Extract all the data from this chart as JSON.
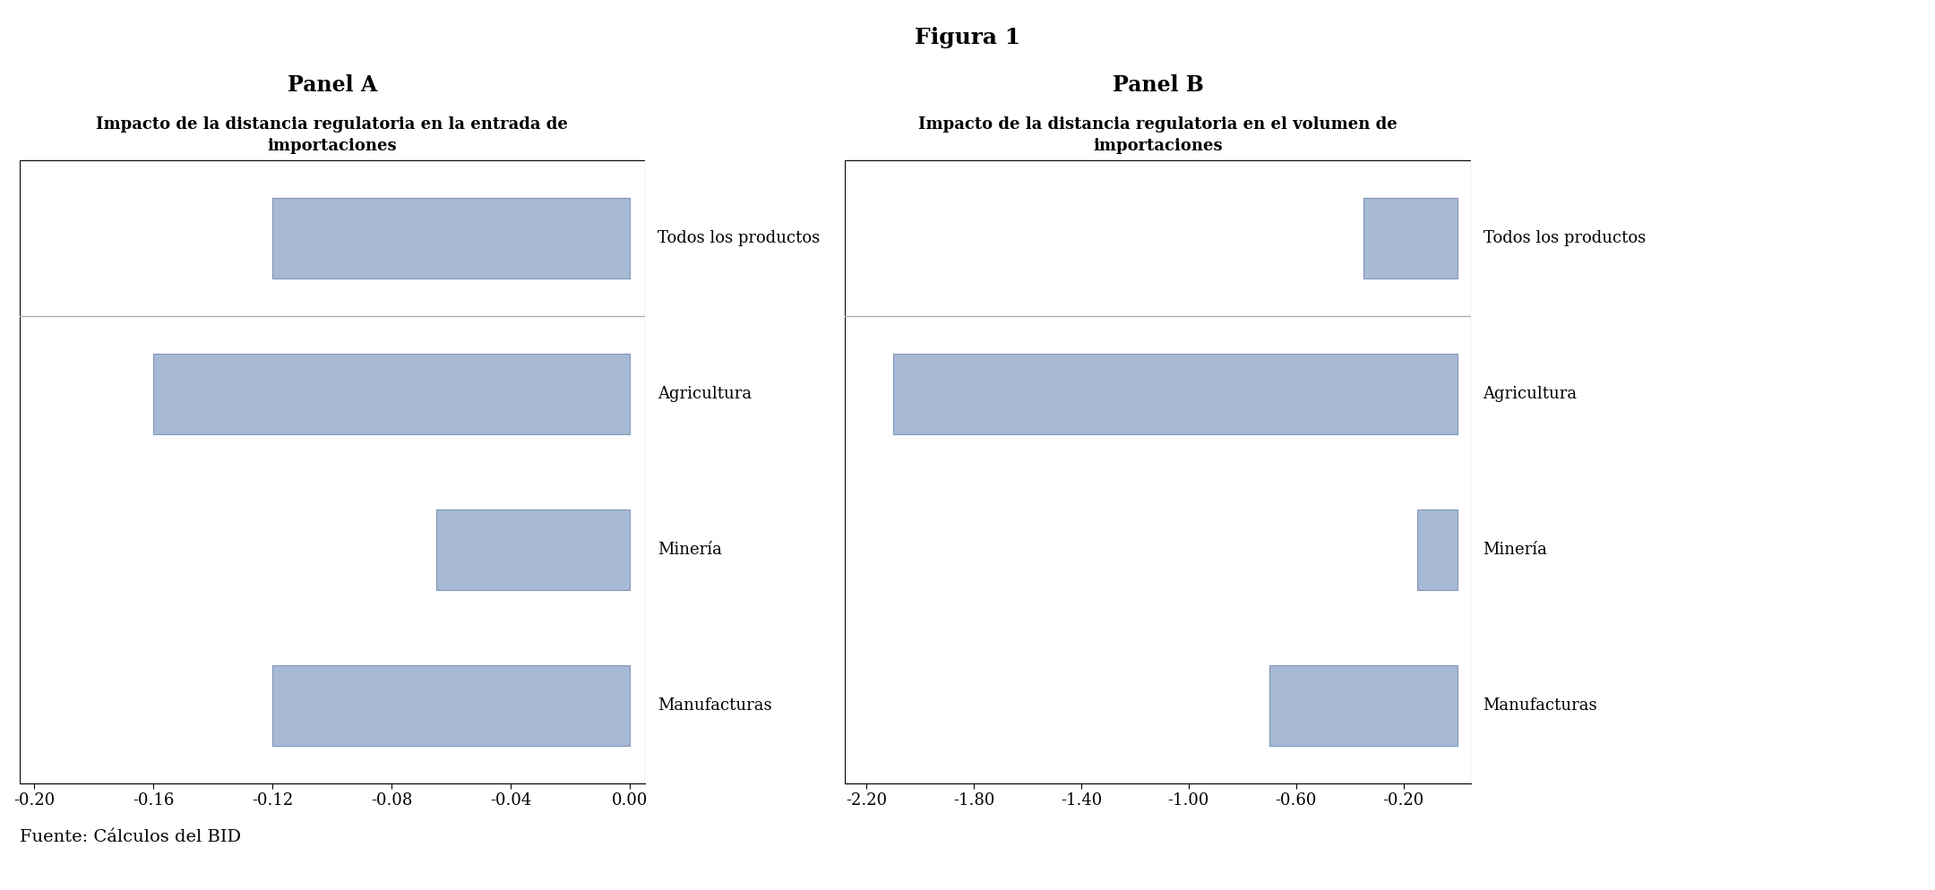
{
  "title": "Figura 1",
  "panel_a_label": "Panel A",
  "panel_b_label": "Panel B",
  "panel_a_subtitle": "Impacto de la distancia regulatoria en la entrada de\nimportaciones",
  "panel_b_subtitle": "Impacto de la distancia regulatoria en el volumen de\nimportaciones",
  "categories": [
    "Todos los productos",
    "Agricultura",
    "Minería",
    "Manufacturas"
  ],
  "panel_a_values": [
    -0.12,
    -0.16,
    -0.065,
    -0.12
  ],
  "panel_b_values": [
    -0.35,
    -2.1,
    -0.15,
    -0.7
  ],
  "panel_a_xlim": [
    -0.205,
    0.005
  ],
  "panel_b_xlim": [
    -2.28,
    0.05
  ],
  "panel_a_xticks": [
    -0.2,
    -0.16,
    -0.12,
    -0.08,
    -0.04,
    0.0
  ],
  "panel_b_xticks": [
    -2.2,
    -1.8,
    -1.4,
    -1.0,
    -0.6,
    -0.2
  ],
  "bar_color": "#A8B9D4",
  "bar_edge_color": "#8095BC",
  "panel_bg_color": "#DCDCDC",
  "plot_bg_color": "#FFFFFF",
  "separator_color": "#AAAAAA",
  "fig_bg_color": "#FFFFFF",
  "footnote": "Fuente: Cálculos del BID",
  "title_fontsize": 18,
  "panel_label_fontsize": 17,
  "subtitle_fontsize": 13,
  "tick_fontsize": 13,
  "category_fontsize": 13,
  "footnote_fontsize": 14
}
